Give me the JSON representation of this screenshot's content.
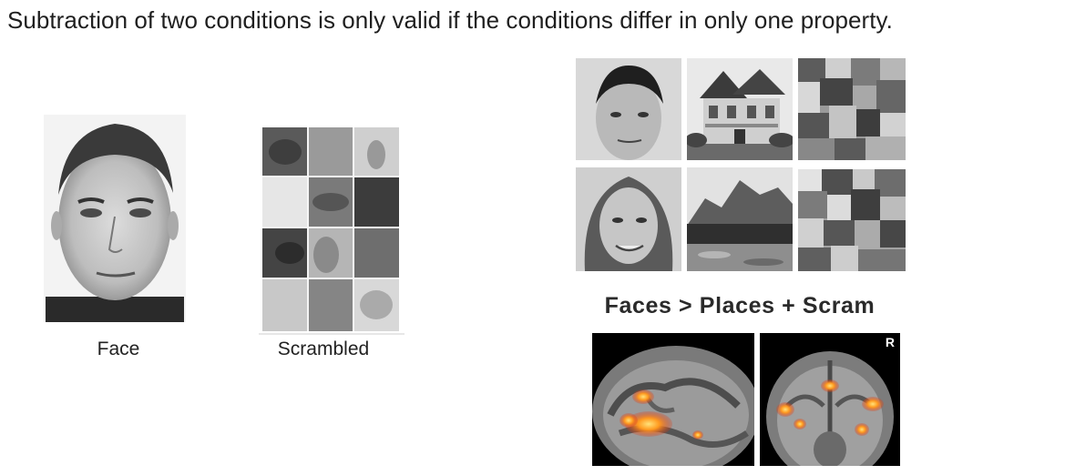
{
  "slide": {
    "heading": "Subtraction of two conditions is only valid if the conditions differ in only one property."
  },
  "left_panel": {
    "face_caption": "Face",
    "scrambled_caption": "Scrambled"
  },
  "right_panel": {
    "contrast_label": "Faces > Places + Scram",
    "hemisphere_marker": "R"
  }
}
